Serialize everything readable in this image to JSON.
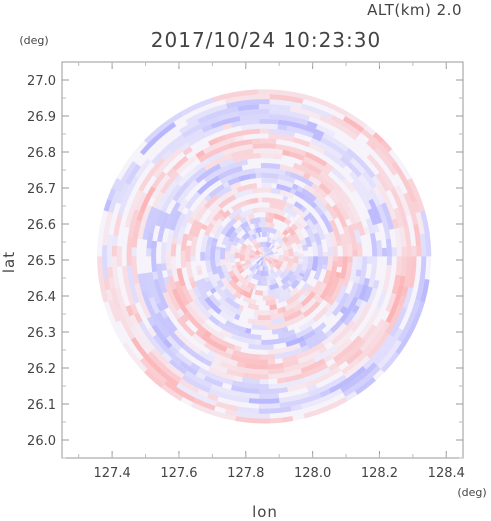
{
  "header": {
    "altitude_label": "ALT(km)  2.0",
    "timestamp": "2017/10/24  10:23:30"
  },
  "colors": {
    "positive": "#ff9a9a",
    "negative": "#9a9aff",
    "neutral": "#ffffff",
    "frame": "#888888"
  },
  "chart_data": {
    "type": "heatmap",
    "xlabel": "lon",
    "ylabel": "lat",
    "xunit": "(deg)",
    "yunit": "(deg)",
    "xlim": [
      127.25,
      128.45
    ],
    "ylim": [
      25.95,
      27.05
    ],
    "x_ticks": [
      127.4,
      127.6,
      127.8,
      128.0,
      128.2,
      128.4
    ],
    "x_tick_labels": [
      "127.4",
      "127.6",
      "127.8",
      "128.0",
      "128.2",
      "128.4"
    ],
    "y_ticks": [
      26.0,
      26.1,
      26.2,
      26.3,
      26.4,
      26.5,
      26.6,
      26.7,
      26.8,
      26.9,
      27.0
    ],
    "y_tick_labels": [
      "26.0",
      "26.1",
      "26.2",
      "26.3",
      "26.4",
      "26.5",
      "26.6",
      "26.7",
      "26.8",
      "26.9",
      "27.0"
    ],
    "radar_center": [
      127.855,
      26.51
    ],
    "radar_radius_deg": 0.5
  }
}
